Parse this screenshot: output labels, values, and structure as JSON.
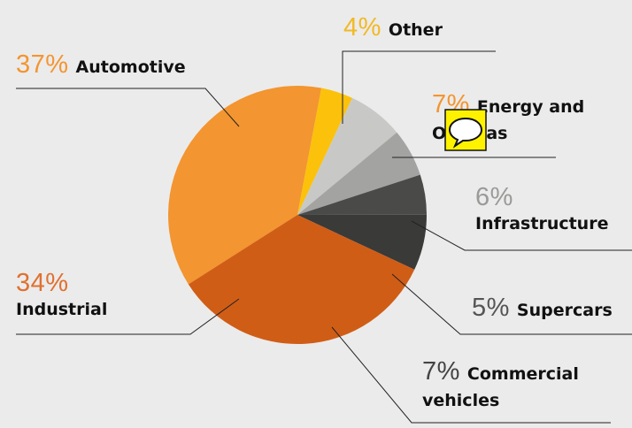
{
  "chart_data": {
    "type": "pie",
    "categories": [
      "Automotive",
      "Other",
      "Energy and Oil&Gas",
      "Infrastructure",
      "Supercars",
      "Commercial vehicles",
      "Industrial"
    ],
    "values": [
      37,
      4,
      7,
      6,
      5,
      7,
      34
    ],
    "value_labels": [
      "37%",
      "4%",
      "7%",
      "6%",
      "5%",
      "7%",
      "34%"
    ],
    "colors": [
      "#f39530",
      "#fcc10a",
      "#c8c9c7",
      "#a3a4a2",
      "#4a4a48",
      "#3a3a38",
      "#d05d16"
    ]
  }
}
